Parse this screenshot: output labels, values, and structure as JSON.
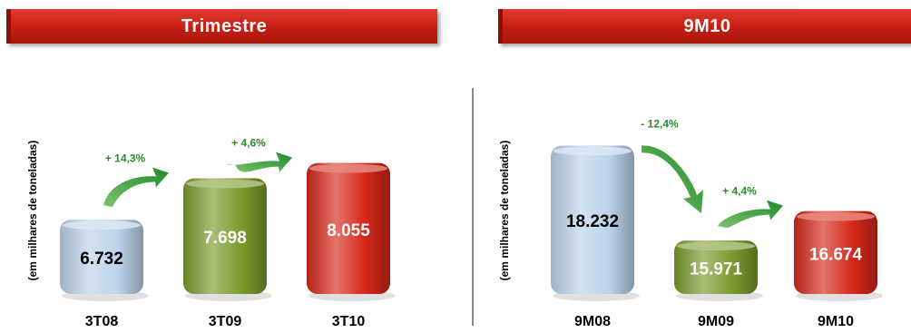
{
  "headers": {
    "left": "Trimestre",
    "right": "9M10"
  },
  "chart_data": [
    {
      "type": "bar",
      "title": "Trimestre",
      "ylabel": "(em milhares de toneladas)",
      "categories": [
        "3T08",
        "3T09",
        "3T10"
      ],
      "values": [
        6732,
        7698,
        8055
      ],
      "value_labels": [
        "6.732",
        "7.698",
        "8.055"
      ],
      "colors": [
        "#bcd3ea",
        "#7a9a2c",
        "#d5281a"
      ],
      "changes": [
        {
          "from": 0,
          "to": 1,
          "label": "+ 14,3%",
          "direction": "up"
        },
        {
          "from": 1,
          "to": 2,
          "label": "+ 4,6%",
          "direction": "up"
        }
      ],
      "ylim": [
        5000,
        8300
      ],
      "grid": false
    },
    {
      "type": "bar",
      "title": "9M10",
      "ylabel": "(em milhares de toneladas)",
      "categories": [
        "9M08",
        "9M09",
        "9M10"
      ],
      "values": [
        18232,
        15971,
        16674
      ],
      "value_labels": [
        "18.232",
        "15.971",
        "16.674"
      ],
      "colors": [
        "#bcd3ea",
        "#7a9a2c",
        "#d5281a"
      ],
      "changes": [
        {
          "from": 0,
          "to": 1,
          "label": "- 12,4%",
          "direction": "down"
        },
        {
          "from": 1,
          "to": 2,
          "label": "+ 4,4%",
          "direction": "up"
        }
      ],
      "ylim": [
        14700,
        18500
      ],
      "grid": false
    }
  ]
}
